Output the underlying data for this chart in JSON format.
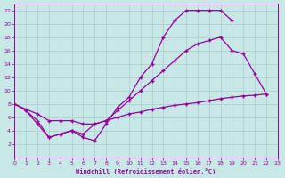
{
  "bg_color": "#c8e8e8",
  "grid_color": "#a8cece",
  "line_color": "#990099",
  "xlabel": "Windchill (Refroidissement éolien,°C)",
  "xlim": [
    0,
    23
  ],
  "ylim": [
    0,
    23
  ],
  "xticks": [
    0,
    1,
    2,
    3,
    4,
    5,
    6,
    7,
    8,
    9,
    10,
    11,
    12,
    13,
    14,
    15,
    16,
    17,
    18,
    19,
    20,
    21,
    22,
    23
  ],
  "yticks": [
    2,
    4,
    6,
    8,
    10,
    12,
    14,
    16,
    18,
    20,
    22
  ],
  "curve_upper_x": [
    0,
    1,
    2,
    3,
    4,
    5,
    6,
    7,
    8,
    9,
    10,
    11,
    12,
    13,
    14,
    15,
    16,
    17,
    18,
    19
  ],
  "curve_upper_y": [
    8,
    7,
    5,
    3,
    3.5,
    4,
    3,
    2.5,
    5,
    7.5,
    9,
    12,
    14,
    18,
    20.5,
    22,
    22,
    22,
    22,
    20.5
  ],
  "curve_diag_x": [
    0,
    1,
    2,
    3,
    4,
    5,
    6,
    7,
    8,
    9,
    10,
    11,
    12,
    13,
    14,
    15,
    16,
    17,
    18,
    19,
    20,
    21,
    22
  ],
  "curve_diag_y": [
    8,
    7.2,
    6.5,
    5.5,
    5.5,
    5.5,
    5.0,
    5.0,
    5.5,
    6.0,
    6.5,
    6.8,
    7.2,
    7.5,
    7.8,
    8.0,
    8.2,
    8.5,
    8.8,
    9.0,
    9.2,
    9.3,
    9.5
  ],
  "curve_mid_x": [
    1,
    2,
    3,
    4,
    5,
    6,
    7,
    8,
    9,
    10,
    11,
    12,
    13,
    14,
    15,
    16,
    17,
    18,
    19,
    20,
    21,
    22
  ],
  "curve_mid_y": [
    7,
    5.5,
    3,
    3.5,
    4,
    3.5,
    5,
    5.5,
    7,
    8.5,
    10,
    11.5,
    13,
    14.5,
    16,
    17,
    17.5,
    18,
    16,
    15.5,
    12.5,
    9.5
  ]
}
